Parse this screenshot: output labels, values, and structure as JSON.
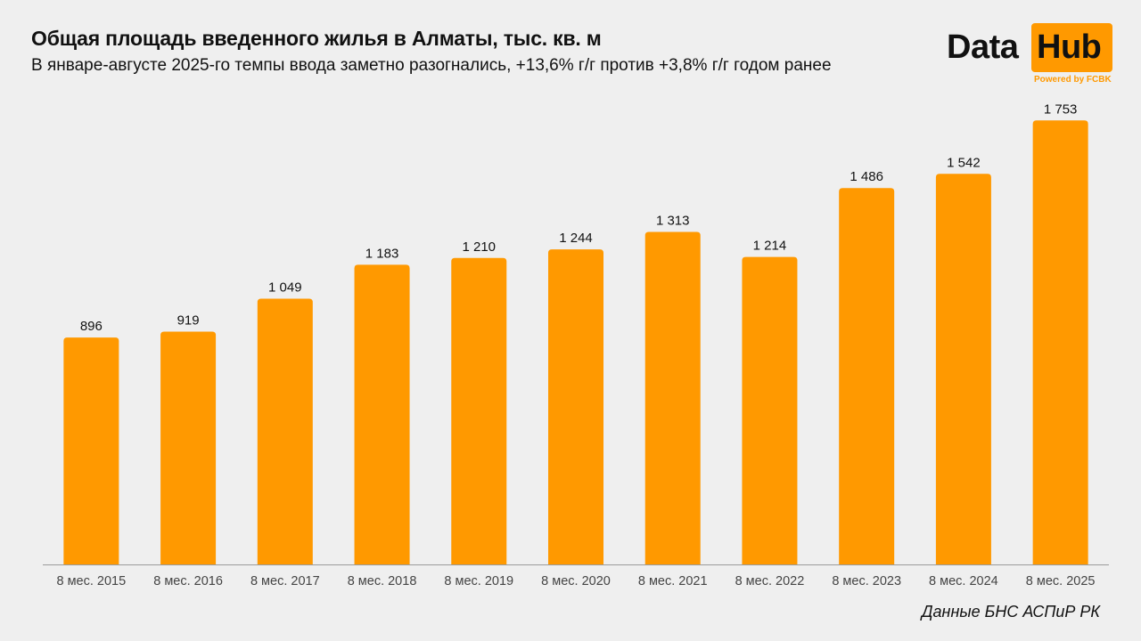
{
  "header": {
    "title": "Общая площадь введенного жилья в Алматы, тыс. кв. м",
    "subtitle": "В январе-августе 2025-го темпы ввода заметно разогнались, +13,6% г/г против +3,8% г/г годом ранее"
  },
  "logo": {
    "word1": "Data",
    "word2": "Hub",
    "tagline": "Powered by FCBK"
  },
  "footer": {
    "source": "Данные БНС АСПиР РК"
  },
  "colors": {
    "bar": "#ff9900",
    "background": "#efefef",
    "text": "#111111",
    "axis": "#9a9a9a"
  },
  "chart_data": {
    "type": "bar",
    "title": "Общая площадь введенного жилья в Алматы, тыс. кв. м",
    "categories": [
      "8 мес. 2015",
      "8 мес. 2016",
      "8 мес. 2017",
      "8 мес. 2018",
      "8 мес. 2019",
      "8 мес. 2020",
      "8 мес. 2021",
      "8 мес. 2022",
      "8 мес. 2023",
      "8 мес. 2024",
      "8 мес. 2025"
    ],
    "values": [
      896,
      919,
      1049,
      1183,
      1210,
      1244,
      1313,
      1214,
      1486,
      1542,
      1753
    ],
    "value_labels": [
      "896",
      "919",
      "1 049",
      "1 183",
      "1 210",
      "1 244",
      "1 313",
      "1 214",
      "1 486",
      "1 542",
      "1 753"
    ],
    "ylim": [
      0,
      1800
    ],
    "grid": false,
    "legend": "none"
  }
}
